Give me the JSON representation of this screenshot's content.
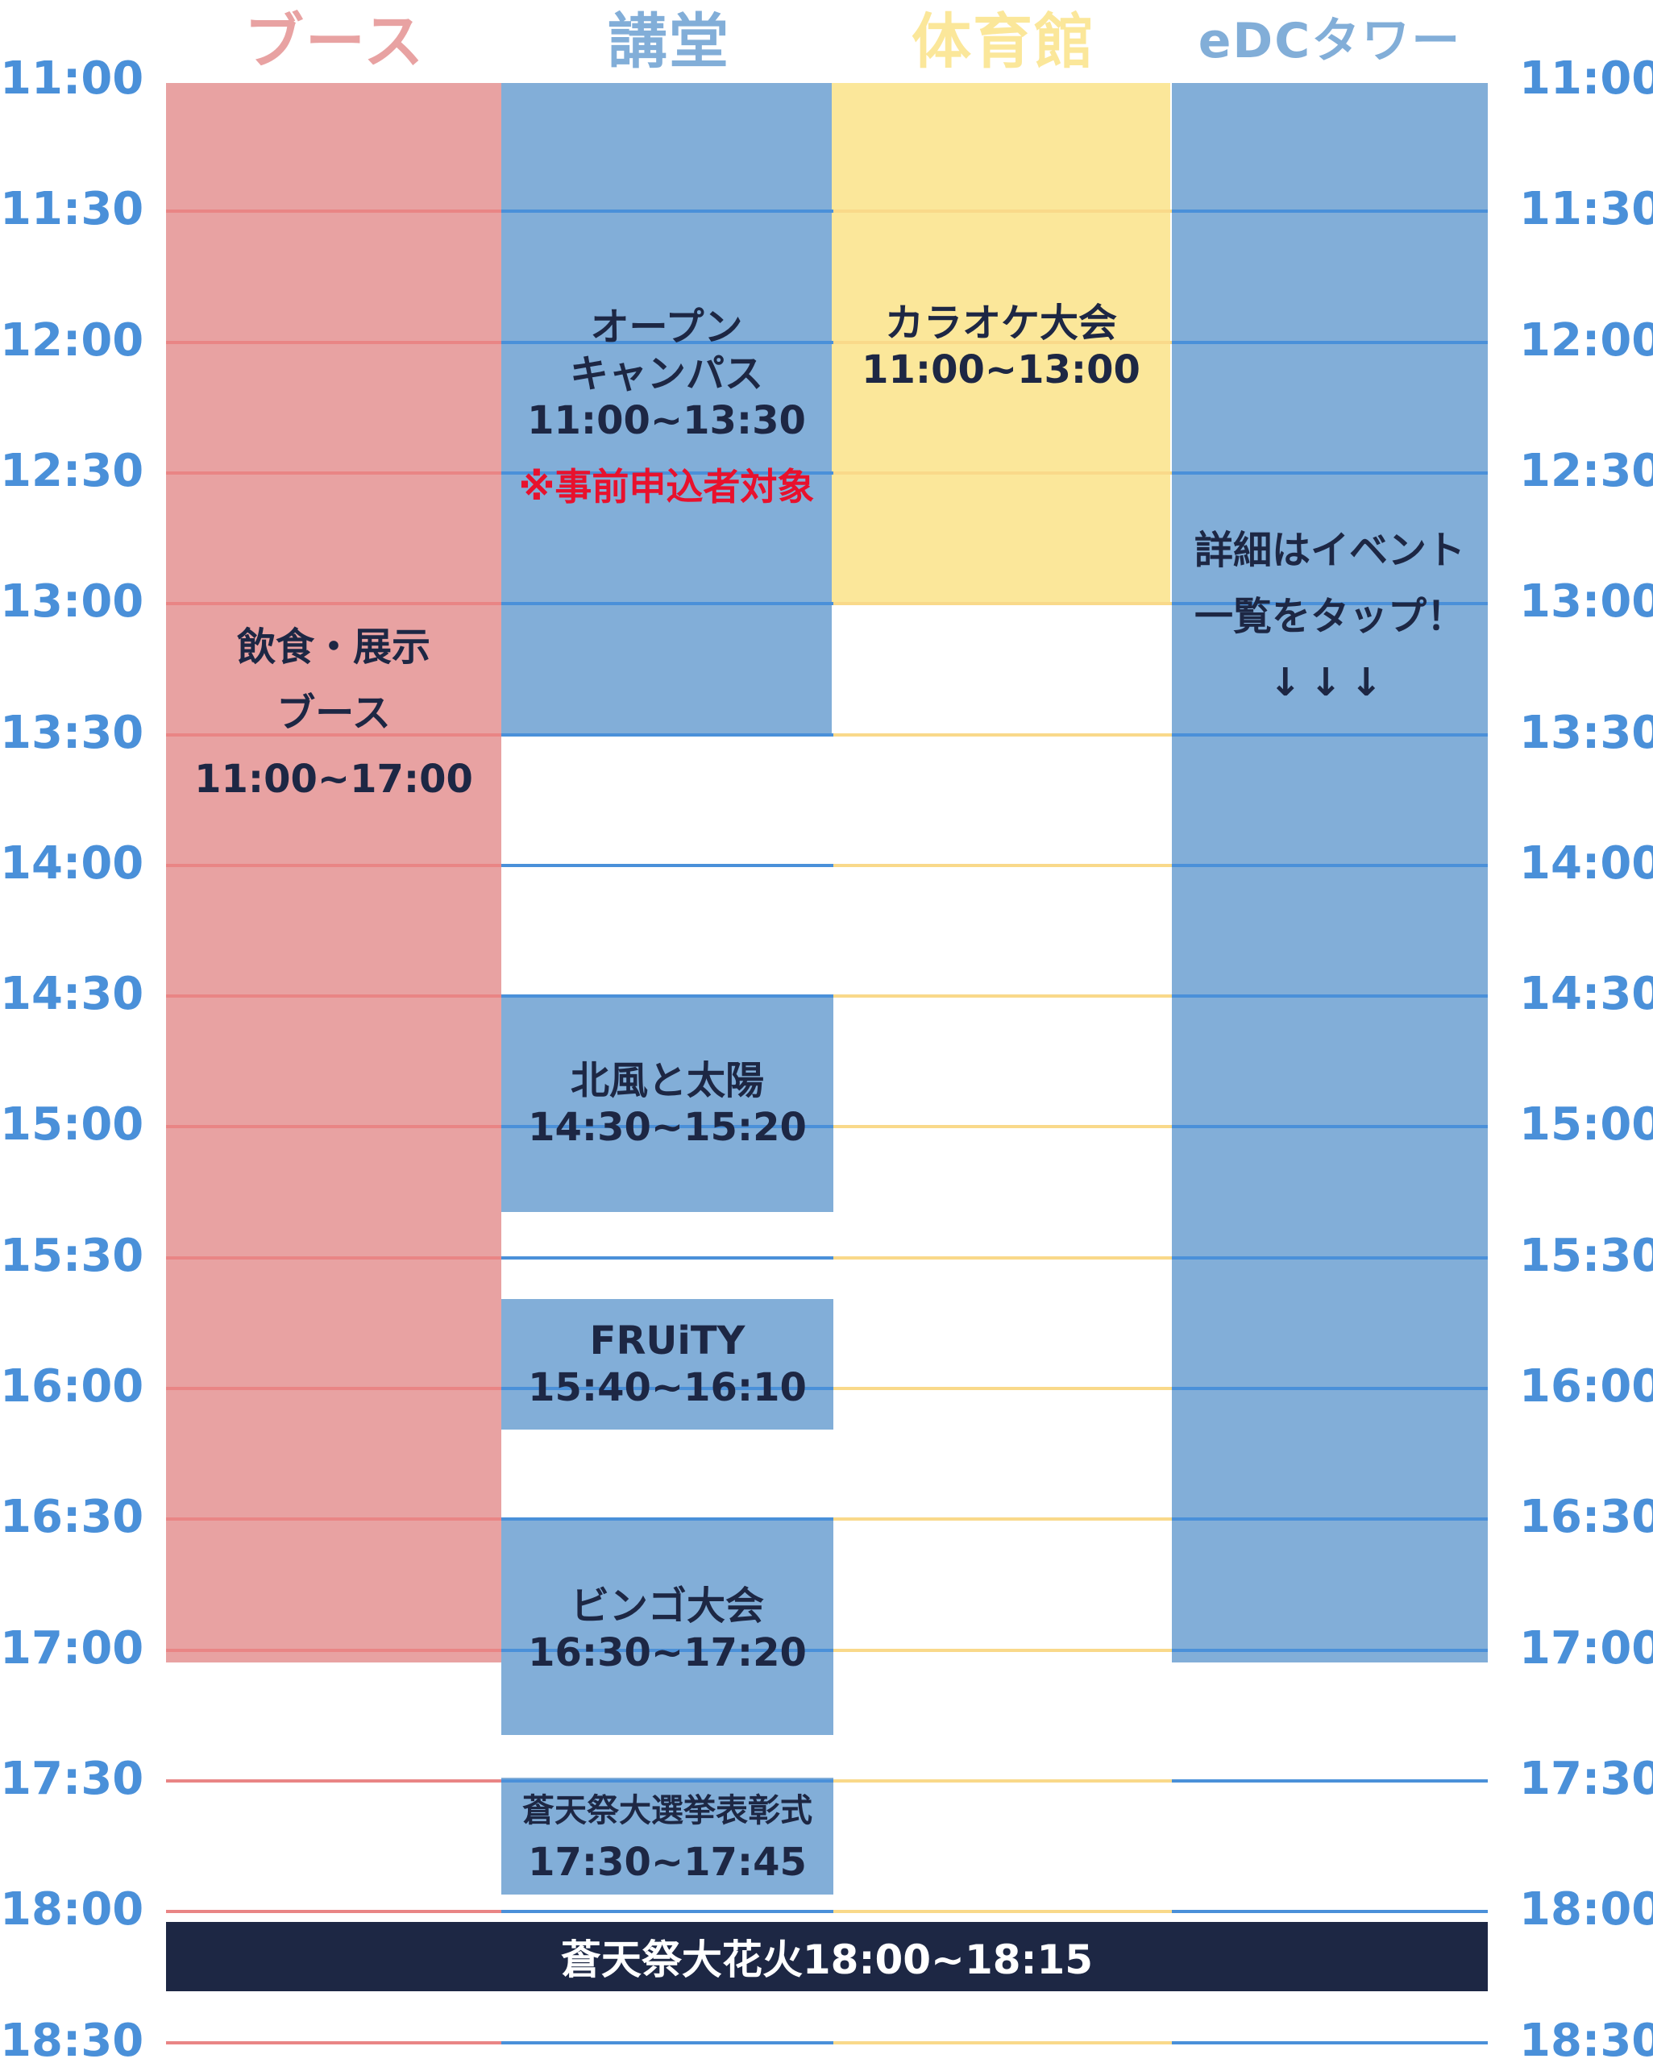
{
  "columns": [
    {
      "label": "ブース",
      "color": "#e8a2a2"
    },
    {
      "label": "講堂",
      "color": "#82aed8"
    },
    {
      "label": "体育館",
      "color": "#fbe79a"
    },
    {
      "label": "eDCタワー",
      "color": "#82aed8"
    }
  ],
  "line_colors": {
    "booth": "#e98585",
    "auditorium": "#4a90d9",
    "gym": "#f9d98a",
    "tower": "#4a90d9"
  },
  "times": [
    "11:00",
    "11:30",
    "12:00",
    "12:30",
    "13:00",
    "13:30",
    "14:00",
    "14:30",
    "15:00",
    "15:30",
    "16:00",
    "16:30",
    "17:00",
    "17:30",
    "18:00",
    "18:30"
  ],
  "events": {
    "booth": {
      "title_1": "飲食・展示",
      "title_2": "ブース",
      "time": "11:00~17:00"
    },
    "open_campus": {
      "title_1": "オープン",
      "title_2": "キャンパス",
      "time": "11:00~13:30",
      "note": "※事前申込者対象"
    },
    "karaoke": {
      "title": "カラオケ大会",
      "time": "11:00~13:00"
    },
    "tower": {
      "line_1": "詳細はイベント",
      "line_2": "一覧をタップ！",
      "arrows": "↓↓↓"
    },
    "kitakaze": {
      "title": "北風と太陽",
      "time": "14:30~15:20"
    },
    "fruity": {
      "title": "FRUiTY",
      "time": "15:40~16:10"
    },
    "bingo": {
      "title": "ビンゴ大会",
      "time": "16:30~17:20"
    },
    "award": {
      "title": "蒼天祭大選挙表彰式",
      "time": "17:30~17:45"
    },
    "fireworks": {
      "label": "蒼天祭大花火18:00~18:15"
    }
  }
}
